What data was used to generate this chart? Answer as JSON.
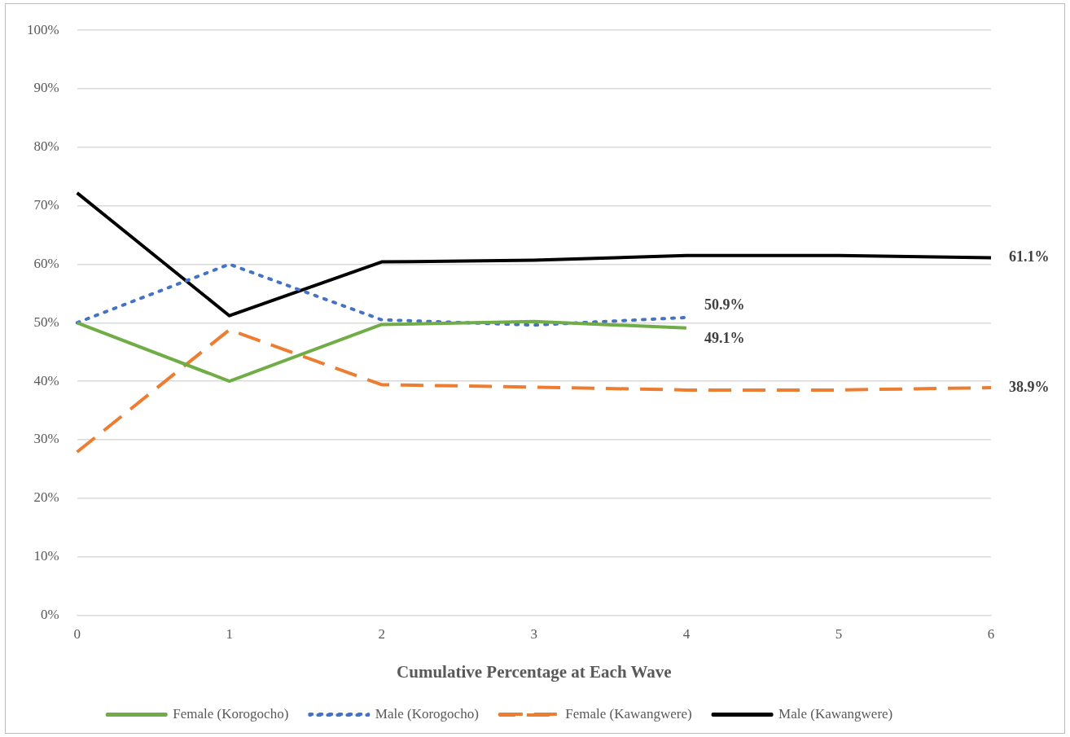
{
  "chart_data": {
    "type": "line",
    "xlabel": "Cumulative Percentage at Each Wave",
    "categories": [
      "0",
      "1",
      "2",
      "3",
      "4",
      "5",
      "6"
    ],
    "ylim": [
      0,
      1
    ],
    "yticks": [
      {
        "value": 0,
        "label": "0%"
      },
      {
        "value": 0.1,
        "label": "10%"
      },
      {
        "value": 0.2,
        "label": "20%"
      },
      {
        "value": 0.3,
        "label": "30%"
      },
      {
        "value": 0.4,
        "label": "40%"
      },
      {
        "value": 0.5,
        "label": "50%"
      },
      {
        "value": 0.6,
        "label": "60%"
      },
      {
        "value": 0.7,
        "label": "70%"
      },
      {
        "value": 0.8,
        "label": "80%"
      },
      {
        "value": 0.9,
        "label": "90%"
      },
      {
        "value": 1,
        "label": "100%"
      }
    ],
    "grid": "y",
    "legend": "bottom",
    "marker": "none",
    "series": [
      {
        "name": "Female (Korogocho)",
        "color": "#70ad47",
        "line_style": "solid",
        "values": [
          0.5,
          0.4,
          0.497,
          0.502,
          0.491,
          null,
          null
        ],
        "value_labels": [
          null,
          null,
          null,
          null,
          "49.1%",
          null,
          null
        ]
      },
      {
        "name": "Male (Korogocho)",
        "color": "#4472c4",
        "line_style": "dotted",
        "values": [
          0.5,
          0.6,
          0.505,
          0.496,
          0.509,
          null,
          null
        ],
        "value_labels": [
          null,
          null,
          null,
          null,
          "50.9%",
          null,
          null
        ]
      },
      {
        "name": "Female (Kawangwere)",
        "color": "#ed7d31",
        "line_style": "dashed",
        "values": [
          0.279,
          0.488,
          0.394,
          0.39,
          0.385,
          0.385,
          0.389
        ],
        "value_labels": [
          null,
          null,
          null,
          null,
          null,
          null,
          "38.9%"
        ]
      },
      {
        "name": "Male (Kawangwere)",
        "color": "#000000",
        "line_style": "solid",
        "values": [
          0.722,
          0.512,
          0.604,
          0.607,
          0.615,
          0.615,
          0.611
        ],
        "value_labels": [
          null,
          null,
          null,
          null,
          null,
          null,
          "61.1%"
        ]
      }
    ]
  }
}
